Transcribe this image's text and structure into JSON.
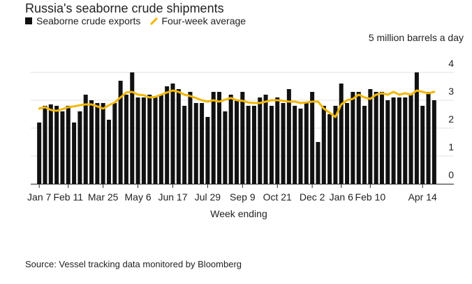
{
  "chart_data": {
    "type": "bar",
    "title": "Russia's seaborne crude shipments",
    "unit_label": "5 million barrels a day",
    "xlabel": "Week ending",
    "source": "Source: Vessel tracking data monitored by Bloomberg",
    "ylim": [
      0,
      4.5
    ],
    "yticks": [
      0,
      1,
      2,
      3,
      4
    ],
    "grid": true,
    "legend_placement": "top-left",
    "colors": {
      "bar": "#111111",
      "line": "#f2b705",
      "grid": "#e2e2e2"
    },
    "x_ticks": [
      {
        "label": "Jan 7",
        "index": 0
      },
      {
        "label": "Feb 11",
        "index": 5
      },
      {
        "label": "Mar 25",
        "index": 11
      },
      {
        "label": "May 6",
        "index": 17
      },
      {
        "label": "Jun 17",
        "index": 23
      },
      {
        "label": "Jul 29",
        "index": 29
      },
      {
        "label": "Sep 9",
        "index": 35
      },
      {
        "label": "Oct 21",
        "index": 41
      },
      {
        "label": "Dec 2",
        "index": 47
      },
      {
        "label": "Jan 6",
        "index": 52
      },
      {
        "label": "Feb 10",
        "index": 57
      },
      {
        "label": "Apr 14",
        "index": 66
      }
    ],
    "series": [
      {
        "name": "Seaborne crude exports",
        "type": "bar",
        "values": [
          2.2,
          2.8,
          2.85,
          2.8,
          2.6,
          2.8,
          2.2,
          2.6,
          3.2,
          3.0,
          2.9,
          2.9,
          2.3,
          2.9,
          3.7,
          3.2,
          4.0,
          3.1,
          3.1,
          3.2,
          3.1,
          3.2,
          3.5,
          3.6,
          3.4,
          2.8,
          3.3,
          2.9,
          2.9,
          2.4,
          3.3,
          3.3,
          2.6,
          3.2,
          3.0,
          3.3,
          2.8,
          2.8,
          3.1,
          3.2,
          2.8,
          3.1,
          2.9,
          3.4,
          2.8,
          2.7,
          2.9,
          3.3,
          1.5,
          2.8,
          2.5,
          2.8,
          3.6,
          2.9,
          3.3,
          3.3,
          2.8,
          3.4,
          3.3,
          3.3,
          3.0,
          3.1,
          3.1,
          3.1,
          3.2,
          4.0,
          2.8,
          3.3,
          3.0
        ]
      },
      {
        "name": "Four-week average",
        "type": "line",
        "values": [
          2.7,
          2.75,
          2.65,
          2.62,
          2.68,
          2.75,
          2.78,
          2.82,
          2.85,
          2.85,
          2.78,
          2.7,
          2.82,
          2.92,
          3.1,
          3.28,
          3.3,
          3.2,
          3.18,
          3.1,
          3.12,
          3.2,
          3.28,
          3.35,
          3.3,
          3.2,
          3.15,
          3.08,
          3.0,
          2.95,
          3.0,
          2.95,
          3.02,
          3.08,
          3.0,
          2.98,
          2.92,
          2.9,
          2.9,
          2.95,
          3.0,
          3.0,
          2.98,
          2.95,
          2.95,
          2.9,
          2.92,
          2.95,
          2.95,
          2.7,
          2.55,
          2.4,
          2.85,
          3.0,
          3.05,
          3.2,
          3.1,
          3.05,
          3.2,
          3.25,
          3.2,
          3.3,
          3.2,
          3.25,
          3.2,
          3.35,
          3.3,
          3.25,
          3.3
        ]
      }
    ]
  }
}
